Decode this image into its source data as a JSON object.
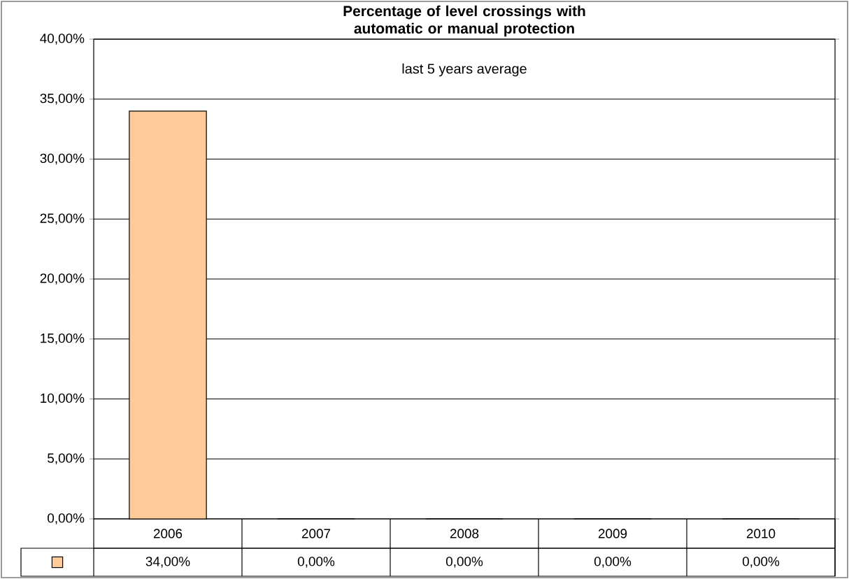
{
  "chart_data": {
    "type": "bar",
    "title": "Percentage of level crossings with automatic or manual protection",
    "subtitle": "last 5 years average",
    "categories": [
      "2006",
      "2007",
      "2008",
      "2009",
      "2010"
    ],
    "values": [
      34,
      0,
      0,
      0,
      0
    ],
    "color": "#ffcc99",
    "value_labels": [
      "34,00%",
      "0,00%",
      "0,00%",
      "0,00%",
      "0,00%"
    ],
    "ylim": [
      0,
      40
    ],
    "yticks": [
      {
        "value": 0,
        "label": "0,00%"
      },
      {
        "value": 5,
        "label": "5,00%"
      },
      {
        "value": 10,
        "label": "10,00%"
      },
      {
        "value": 15,
        "label": "15,00%"
      },
      {
        "value": 20,
        "label": "20,00%"
      },
      {
        "value": 25,
        "label": "25,00%"
      },
      {
        "value": 30,
        "label": "30,00%"
      },
      {
        "value": 35,
        "label": "35,00%"
      },
      {
        "value": 40,
        "label": "40,00%"
      }
    ],
    "grid": "y"
  }
}
